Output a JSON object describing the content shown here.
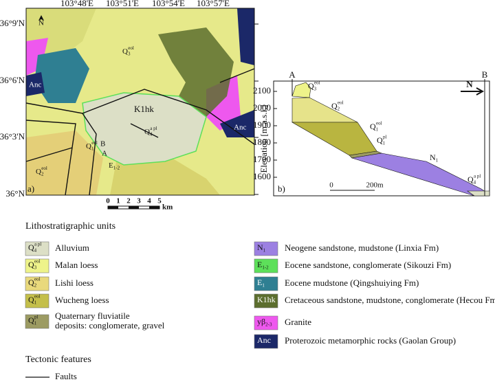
{
  "map": {
    "panel_label": "a)",
    "north": "N",
    "longitudes": [
      "103°48'E",
      "103°51'E",
      "103°54'E",
      "103°57'E"
    ],
    "latitudes": [
      "36°9'N",
      "36°6'N",
      "36°3'N",
      "36°N"
    ],
    "scale_ticks": [
      "0",
      "1",
      "2",
      "3",
      "4",
      "5"
    ],
    "scale_unit": "km",
    "labels": {
      "k1hk": "K1hk",
      "anc_left": "Anc",
      "anc_right": "Anc",
      "e12": {
        "symbol": "E",
        "sub": "1-2"
      },
      "q4": {
        "symbol": "Q",
        "sub": "4",
        "sup": "a pl"
      },
      "q3": {
        "symbol": "Q",
        "sub": "3",
        "sup": "eol"
      },
      "q2": {
        "symbol": "Q",
        "sub": "2",
        "sup": "eol"
      },
      "q1": {
        "symbol": "Q",
        "sub": "1",
        "sup": "eol"
      },
      "a": "A",
      "b": "B"
    }
  },
  "section": {
    "panel_label": "b)",
    "start": "A",
    "end": "B",
    "north": "N",
    "y_label": "Elevation [m a.s.l.]",
    "yticks": [
      2100,
      2000,
      1900,
      1800,
      1700,
      1600
    ],
    "scale_ticks": [
      "0",
      "200m"
    ],
    "labels": [
      {
        "symbol": "Q",
        "sub": "3",
        "sup": "eol"
      },
      {
        "symbol": "Q",
        "sub": "2",
        "sup": "eol"
      },
      {
        "symbol": "Q",
        "sub": "1",
        "sup": "eol"
      },
      {
        "symbol": "Q",
        "sub": "1",
        "sup": "pl"
      },
      {
        "symbol": "N",
        "sub": "1"
      },
      {
        "symbol": "Q",
        "sub": "4",
        "sup": "a pl"
      }
    ]
  },
  "legend": {
    "title": "Lithostratigraphic units",
    "left": [
      {
        "symbol": "Q",
        "sub": "4",
        "sup": "a pl",
        "color": "#dcdfc6",
        "lines": [
          "Alluvium"
        ]
      },
      {
        "symbol": "Q",
        "sub": "3",
        "sup": "eol",
        "color": "#eef38a",
        "lines": [
          "Malan loess"
        ]
      },
      {
        "symbol": "Q",
        "sub": "2",
        "sup": "eol",
        "color": "#e9d97c",
        "lines": [
          "Lishi loess"
        ]
      },
      {
        "symbol": "Q",
        "sub": "1",
        "sup": "eol",
        "color": "#c4bf4a",
        "lines": [
          "Wucheng loess"
        ]
      },
      {
        "symbol": "Q",
        "sub": "1",
        "sup": "pl",
        "color": "#9c9b62",
        "lines": [
          "Quaternary fluviatile",
          "deposits: conglomerate, gravel"
        ]
      }
    ],
    "right": [
      {
        "symbol": "N",
        "sub": "1",
        "color": "#9c80e2",
        "lines": [
          "Neogene sandstone, mudstone (Linxia Fm)"
        ]
      },
      {
        "symbol": "E",
        "sub": "1-2",
        "color": "#5de05a",
        "lines": [
          "Eocene sandstone, conglomerate (Sikouzi Fm)"
        ]
      },
      {
        "symbol": "E",
        "sub": "1",
        "color": "#2f7f92",
        "lines": [
          "Eocene mudstone (Qingshuiying Fm)"
        ]
      },
      {
        "symbol": "K1hk",
        "color": "#5c6e2e",
        "lines": [
          "Cretaceous sandstone, mudstone, conglomerate (Hecou Fm)"
        ]
      },
      {
        "symbol": "yβ",
        "sub": "2-3",
        "color": "#ee58ee",
        "lines": [
          "Granite"
        ]
      },
      {
        "symbol": "Anc",
        "color": "#1b2868",
        "lines": [
          "Proterozoic metamorphic rocks (Gaolan Group)"
        ]
      }
    ],
    "tectonic_title": "Tectonic features",
    "faults": "Faults"
  }
}
